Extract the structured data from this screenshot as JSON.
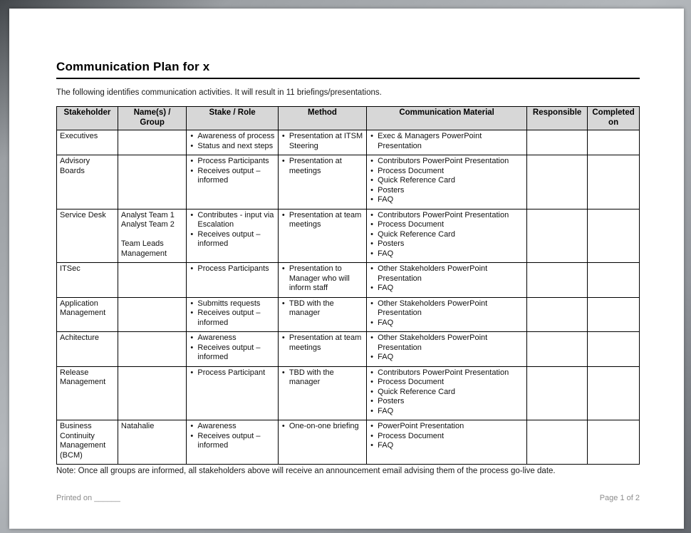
{
  "document": {
    "title": "Communication Plan for x",
    "intro": "The following identifies communication activities. It will result in 11 briefings/presentations.",
    "note": "Note: Once all groups are informed, all stakeholders above will receive an announcement email advising them of the process go-live date.",
    "footer": {
      "printed_on": "Printed on ______",
      "page_number": "Page 1 of 2"
    }
  },
  "table": {
    "headers": [
      "Stakeholder",
      "Name(s) /\nGroup",
      "Stake / Role",
      "Method",
      "Communication Material",
      "Responsible",
      "Completed\non"
    ],
    "column_widths": [
      "10.5%",
      "11.8%",
      "15.7%",
      "15.2%",
      "27.5%",
      "10.4%",
      "8.9%"
    ],
    "rows": [
      {
        "stakeholder": "Executives",
        "names": [],
        "stake_role": [
          "Awareness of process",
          "Status and next steps"
        ],
        "method": [
          "Presentation at ITSM Steering"
        ],
        "material": [
          "Exec & Managers PowerPoint Presentation"
        ],
        "responsible": "",
        "completed_on": ""
      },
      {
        "stakeholder": "Advisory Boards",
        "names": [],
        "stake_role": [
          "Process Participants",
          "Receives output – informed"
        ],
        "method": [
          "Presentation at meetings"
        ],
        "material": [
          "Contributors PowerPoint Presentation",
          "Process Document",
          "Quick Reference Card",
          "Posters",
          "FAQ"
        ],
        "responsible": "",
        "completed_on": ""
      },
      {
        "stakeholder": "Service Desk",
        "names": [
          "Analyst Team 1",
          "Analyst Team 2",
          "",
          "Team Leads",
          "Management"
        ],
        "stake_role": [
          "Contributes - input via Escalation",
          "Receives output – informed"
        ],
        "method": [
          "Presentation at team meetings"
        ],
        "material": [
          "Contributors PowerPoint Presentation",
          "Process Document",
          "Quick Reference Card",
          "Posters",
          "FAQ"
        ],
        "responsible": "",
        "completed_on": ""
      },
      {
        "stakeholder": "ITSec",
        "names": [],
        "stake_role": [
          "Process Participants"
        ],
        "method": [
          "Presentation to Manager who will inform staff"
        ],
        "material": [
          "Other Stakeholders PowerPoint Presentation",
          "FAQ"
        ],
        "responsible": "",
        "completed_on": ""
      },
      {
        "stakeholder": "Application Management",
        "names": [],
        "stake_role": [
          "Submitts requests",
          "Receives output – informed"
        ],
        "method": [
          "TBD with the manager"
        ],
        "material": [
          "Other Stakeholders PowerPoint Presentation",
          "FAQ"
        ],
        "responsible": "",
        "completed_on": ""
      },
      {
        "stakeholder": "Achitecture",
        "names": [],
        "stake_role": [
          "Awareness",
          "Receives output – informed"
        ],
        "method": [
          "Presentation at team meetings"
        ],
        "material": [
          "Other Stakeholders PowerPoint Presentation",
          "FAQ"
        ],
        "responsible": "",
        "completed_on": ""
      },
      {
        "stakeholder": "Release Management",
        "names": [],
        "stake_role": [
          "Process Participant"
        ],
        "method": [
          "TBD with the manager"
        ],
        "material": [
          "Contributors PowerPoint Presentation",
          "Process Document",
          "Quick Reference Card",
          "Posters",
          "FAQ"
        ],
        "responsible": "",
        "completed_on": ""
      },
      {
        "stakeholder": "Business Continuity Management (BCM)",
        "names": [
          "Natahalie"
        ],
        "stake_role": [
          "Awareness",
          "Receives output – informed"
        ],
        "method": [
          "One-on-one briefing"
        ],
        "material": [
          "PowerPoint Presentation",
          "Process Document",
          "FAQ"
        ],
        "responsible": "",
        "completed_on": ""
      }
    ]
  },
  "colors": {
    "header_bg": "#d7d7d7",
    "table_border": "#000000",
    "muted_text": "#8c8c8c"
  }
}
